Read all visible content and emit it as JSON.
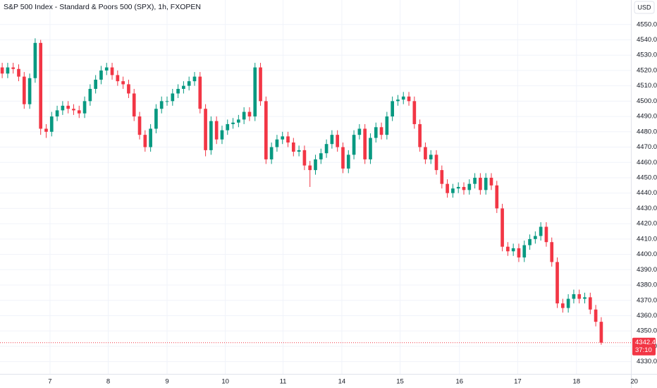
{
  "chart_data": {
    "type": "candlestick",
    "title": "S&P 500 Index - Standard & Poors 500 (SPX), 1h, FXOPEN",
    "currency": "USD",
    "countdown": "37:10",
    "up_color": "#089981",
    "down_color": "#f23645",
    "grid": true,
    "ylim": [
      4322,
      4566
    ],
    "xlim": [
      -0.4,
      114.4
    ],
    "yticks": [
      {
        "value": 4330,
        "label": "4330.0"
      },
      {
        "value": 4340,
        "label": "4340.0"
      },
      {
        "value": 4350,
        "label": "4350.0"
      },
      {
        "value": 4360,
        "label": "4360.0"
      },
      {
        "value": 4370,
        "label": "4370.0"
      },
      {
        "value": 4380,
        "label": "4380.0"
      },
      {
        "value": 4390,
        "label": "4390.0"
      },
      {
        "value": 4400,
        "label": "4400.0"
      },
      {
        "value": 4410,
        "label": "4410.0"
      },
      {
        "value": 4420,
        "label": "4420.0"
      },
      {
        "value": 4430,
        "label": "4430.0"
      },
      {
        "value": 4440,
        "label": "4440.0"
      },
      {
        "value": 4450,
        "label": "4450.0"
      },
      {
        "value": 4460,
        "label": "4460.0"
      },
      {
        "value": 4470,
        "label": "4470.0"
      },
      {
        "value": 4480,
        "label": "4480.0"
      },
      {
        "value": 4490,
        "label": "4490.0"
      },
      {
        "value": 4500,
        "label": "4500.0"
      },
      {
        "value": 4510,
        "label": "4510.0"
      },
      {
        "value": 4520,
        "label": "4520.0"
      },
      {
        "value": 4530,
        "label": "4530.0"
      },
      {
        "value": 4540,
        "label": "4540.0"
      },
      {
        "value": 4550,
        "label": "4550.0"
      }
    ],
    "xticks": [
      {
        "value": 8.7,
        "label": "7"
      },
      {
        "value": 19.3,
        "label": "8"
      },
      {
        "value": 30.0,
        "label": "9"
      },
      {
        "value": 40.6,
        "label": "10"
      },
      {
        "value": 51.1,
        "label": "11"
      },
      {
        "value": 61.8,
        "label": "14"
      },
      {
        "value": 72.4,
        "label": "15"
      },
      {
        "value": 83.2,
        "label": "16"
      },
      {
        "value": 93.8,
        "label": "17"
      },
      {
        "value": 104.5,
        "label": "18"
      },
      {
        "value": 115.0,
        "label": "20"
      }
    ],
    "open": [
      4522,
      4518,
      4522,
      4521,
      4516,
      4498,
      4515,
      4538,
      4482,
      4480,
      4490,
      4494,
      4497,
      4495,
      4494,
      4492,
      4500,
      4508,
      4514,
      4520,
      4522,
      4517,
      4513,
      4511,
      4505,
      4490,
      4478,
      4470,
      4482,
      4495,
      4500,
      4500,
      4505,
      4508,
      4510,
      4513,
      4516,
      4495,
      4468,
      4487,
      4475,
      4481,
      4485,
      4486,
      4488,
      4493,
      4490,
      4522,
      4500,
      4462,
      4470,
      4475,
      4477,
      4473,
      4467,
      4468,
      4458,
      4455,
      4462,
      4466,
      4472,
      4478,
      4470,
      4456,
      4465,
      4478,
      4482,
      4462,
      4476,
      4483,
      4478,
      4490,
      4500,
      4501,
      4503,
      4500,
      4485,
      4470,
      4462,
      4465,
      4455,
      4446,
      4440,
      4443,
      4444,
      4442,
      4446,
      4450,
      4442,
      4450,
      4445,
      4430,
      4405,
      4402,
      4404,
      4398,
      4406,
      4410,
      4412,
      4418,
      4408,
      4395,
      4368,
      4365,
      4371,
      4374,
      4371,
      4372,
      4364,
      4356
    ],
    "high": [
      4525,
      4525,
      4525,
      4524,
      4519,
      4518,
      4541,
      4540,
      4485,
      4493,
      4497,
      4500,
      4500,
      4498,
      4497,
      4503,
      4511,
      4517,
      4523,
      4525,
      4525,
      4520,
      4516,
      4514,
      4508,
      4493,
      4481,
      4485,
      4498,
      4503,
      4503,
      4508,
      4511,
      4513,
      4516,
      4519,
      4519,
      4498,
      4490,
      4490,
      4484,
      4488,
      4489,
      4491,
      4496,
      4496,
      4525,
      4525,
      4503,
      4473,
      4478,
      4480,
      4480,
      4476,
      4471,
      4471,
      4461,
      4465,
      4469,
      4475,
      4481,
      4481,
      4473,
      4468,
      4481,
      4485,
      4485,
      4479,
      4486,
      4486,
      4493,
      4503,
      4504,
      4506,
      4506,
      4503,
      4488,
      4473,
      4468,
      4468,
      4458,
      4449,
      4446,
      4447,
      4447,
      4449,
      4453,
      4453,
      4453,
      4453,
      4448,
      4433,
      4408,
      4407,
      4407,
      4409,
      4413,
      4415,
      4421,
      4421,
      4411,
      4398,
      4371,
      4374,
      4377,
      4377,
      4375,
      4375,
      4367,
      4359
    ],
    "low": [
      4515,
      4515,
      4518,
      4513,
      4495,
      4495,
      4512,
      4478,
      4476,
      4477,
      4487,
      4491,
      4492,
      4491,
      4489,
      4489,
      4497,
      4505,
      4511,
      4517,
      4514,
      4510,
      4508,
      4502,
      4487,
      4475,
      4467,
      4467,
      4479,
      4492,
      4497,
      4497,
      4502,
      4505,
      4507,
      4510,
      4492,
      4464,
      4465,
      4472,
      4472,
      4478,
      4482,
      4483,
      4485,
      4487,
      4487,
      4497,
      4459,
      4459,
      4467,
      4472,
      4470,
      4464,
      4464,
      4455,
      4444,
      4452,
      4459,
      4463,
      4469,
      4467,
      4453,
      4453,
      4462,
      4475,
      4459,
      4459,
      4473,
      4475,
      4475,
      4487,
      4497,
      4498,
      4497,
      4482,
      4467,
      4459,
      4459,
      4452,
      4443,
      4437,
      4437,
      4440,
      4439,
      4439,
      4443,
      4439,
      4439,
      4442,
      4427,
      4402,
      4399,
      4399,
      4395,
      4395,
      4403,
      4407,
      4409,
      4405,
      4392,
      4365,
      4362,
      4362,
      4368,
      4368,
      4368,
      4361,
      4353,
      4341
    ],
    "close": [
      4518,
      4522,
      4521,
      4516,
      4498,
      4515,
      4538,
      4482,
      4480,
      4490,
      4494,
      4497,
      4495,
      4494,
      4492,
      4500,
      4508,
      4514,
      4520,
      4522,
      4517,
      4513,
      4511,
      4505,
      4490,
      4478,
      4470,
      4482,
      4495,
      4500,
      4500,
      4505,
      4508,
      4510,
      4513,
      4516,
      4495,
      4468,
      4487,
      4475,
      4481,
      4485,
      4486,
      4488,
      4493,
      4490,
      4522,
      4500,
      4462,
      4470,
      4475,
      4477,
      4473,
      4467,
      4468,
      4458,
      4455,
      4462,
      4466,
      4472,
      4478,
      4470,
      4456,
      4465,
      4478,
      4482,
      4462,
      4476,
      4483,
      4478,
      4490,
      4500,
      4501,
      4503,
      4500,
      4485,
      4470,
      4462,
      4465,
      4455,
      4446,
      4440,
      4443,
      4444,
      4442,
      4446,
      4450,
      4442,
      4450,
      4445,
      4430,
      4405,
      4402,
      4404,
      4398,
      4406,
      4410,
      4412,
      4418,
      4408,
      4395,
      4368,
      4365,
      4371,
      4374,
      4371,
      4372,
      4364,
      4356,
      4342.4
    ]
  }
}
